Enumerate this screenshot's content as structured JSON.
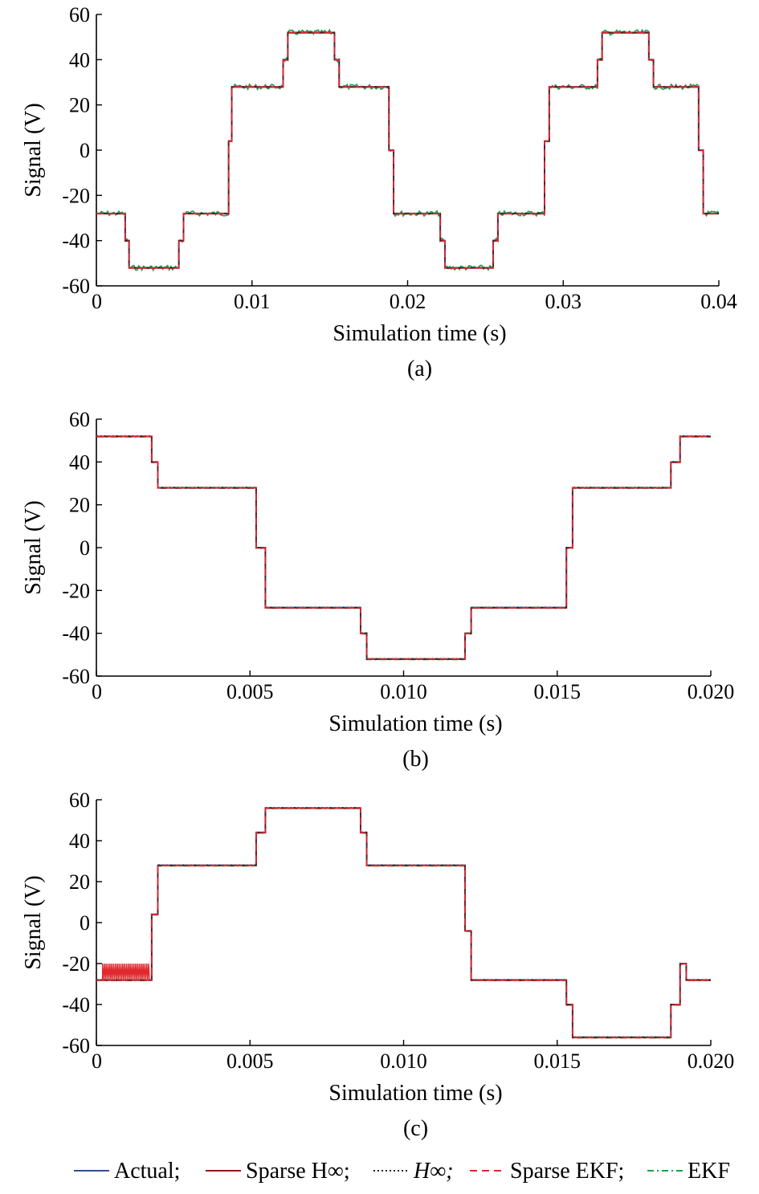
{
  "colors": {
    "actual": "#2f4f8f",
    "sparse_hinf": "#8b1a1a",
    "hinf": "#222222",
    "sparse_ekf": "#e0282e",
    "ekf": "#1f9e4a"
  },
  "legend": {
    "items": [
      {
        "key": "actual",
        "label": "Actual;",
        "dash": "",
        "italic": false
      },
      {
        "key": "sparse_hinf",
        "label": "Sparse H∞;",
        "dash": "",
        "italic": false
      },
      {
        "key": "hinf",
        "label": "H∞;",
        "dash": "2,3",
        "italic": true
      },
      {
        "key": "sparse_ekf",
        "label": "Sparse EKF;",
        "dash": "9,6",
        "italic": false
      },
      {
        "key": "ekf",
        "label": "EKF",
        "dash": "8,4,2,4",
        "italic": false
      }
    ]
  },
  "chart_data": [
    {
      "type": "line",
      "panel_label": "(a)",
      "xlabel": "Simulation time (s)",
      "ylabel": "Signal (V)",
      "xlim": [
        0,
        0.04
      ],
      "ylim": [
        -60,
        60
      ],
      "xticks": [
        0,
        0.01,
        0.02,
        0.03,
        0.04
      ],
      "xtick_labels": [
        "0",
        "0.01",
        "0.02",
        "0.03",
        "0.04"
      ],
      "yticks": [
        -60,
        -40,
        -20,
        0,
        20,
        40,
        60
      ],
      "ytick_labels": [
        "-60",
        "-40",
        "-20",
        "0",
        "20",
        "40",
        "60"
      ],
      "series": [
        {
          "key": "actual",
          "step": true,
          "x": [
            0,
            0.00185,
            0.0021,
            0.0053,
            0.0056,
            0.0085,
            0.0087,
            0.012,
            0.0123,
            0.0153,
            0.0156,
            0.0188,
            0.0191,
            0.0221,
            0.0224,
            0.0255,
            0.0258,
            0.0288,
            0.0291,
            0.0322,
            0.0325,
            0.0355,
            0.0358,
            0.0387,
            0.039,
            0.04
          ],
          "y": [
            -28,
            -40,
            -52,
            -40,
            -28,
            4,
            28,
            40,
            52,
            40,
            28,
            0,
            -28,
            -40,
            -52,
            -40,
            -28,
            4,
            28,
            40,
            52,
            40,
            28,
            0,
            -28,
            -28
          ]
        }
      ]
    },
    {
      "type": "line",
      "panel_label": "(b)",
      "xlabel": "Simulation time (s)",
      "ylabel": "Signal (V)",
      "xlim": [
        0,
        0.02
      ],
      "ylim": [
        -60,
        60
      ],
      "xticks": [
        0,
        0.005,
        0.01,
        0.015,
        0.02
      ],
      "xtick_labels": [
        "0",
        "0.005",
        "0.010",
        "0.015",
        "0.020"
      ],
      "yticks": [
        -60,
        -40,
        -20,
        0,
        20,
        40,
        60
      ],
      "ytick_labels": [
        "-60",
        "-40",
        "-20",
        "0",
        "20",
        "40",
        "60"
      ],
      "series": [
        {
          "key": "actual",
          "step": true,
          "x": [
            0,
            0.0018,
            0.002,
            0.0052,
            0.0055,
            0.0086,
            0.0088,
            0.012,
            0.0122,
            0.0153,
            0.0155,
            0.0187,
            0.019,
            0.02
          ],
          "y": [
            52,
            40,
            28,
            0,
            -28,
            -40,
            -52,
            -40,
            -28,
            0,
            28,
            40,
            52,
            52
          ]
        }
      ]
    },
    {
      "type": "line",
      "panel_label": "(c)",
      "xlabel": "Simulation time (s)",
      "ylabel": "Signal (V)",
      "xlim": [
        0,
        0.02
      ],
      "ylim": [
        -60,
        60
      ],
      "xticks": [
        0,
        0.005,
        0.01,
        0.015,
        0.02
      ],
      "xtick_labels": [
        "0",
        "0.005",
        "0.010",
        "0.015",
        "0.020"
      ],
      "yticks": [
        -60,
        -40,
        -20,
        0,
        20,
        40,
        60
      ],
      "ytick_labels": [
        "-60",
        "-40",
        "-20",
        "0",
        "20",
        "40",
        "60"
      ],
      "series": [
        {
          "key": "actual",
          "step": true,
          "x": [
            0,
            0.0018,
            0.002,
            0.0052,
            0.0055,
            0.0086,
            0.0088,
            0.012,
            0.0122,
            0.0153,
            0.0155,
            0.0187,
            0.019,
            0.0192,
            0.02
          ],
          "y": [
            -28,
            4,
            28,
            44,
            56,
            44,
            28,
            -4,
            -28,
            -40,
            -56,
            -40,
            -20,
            -28,
            -28
          ]
        }
      ]
    }
  ]
}
